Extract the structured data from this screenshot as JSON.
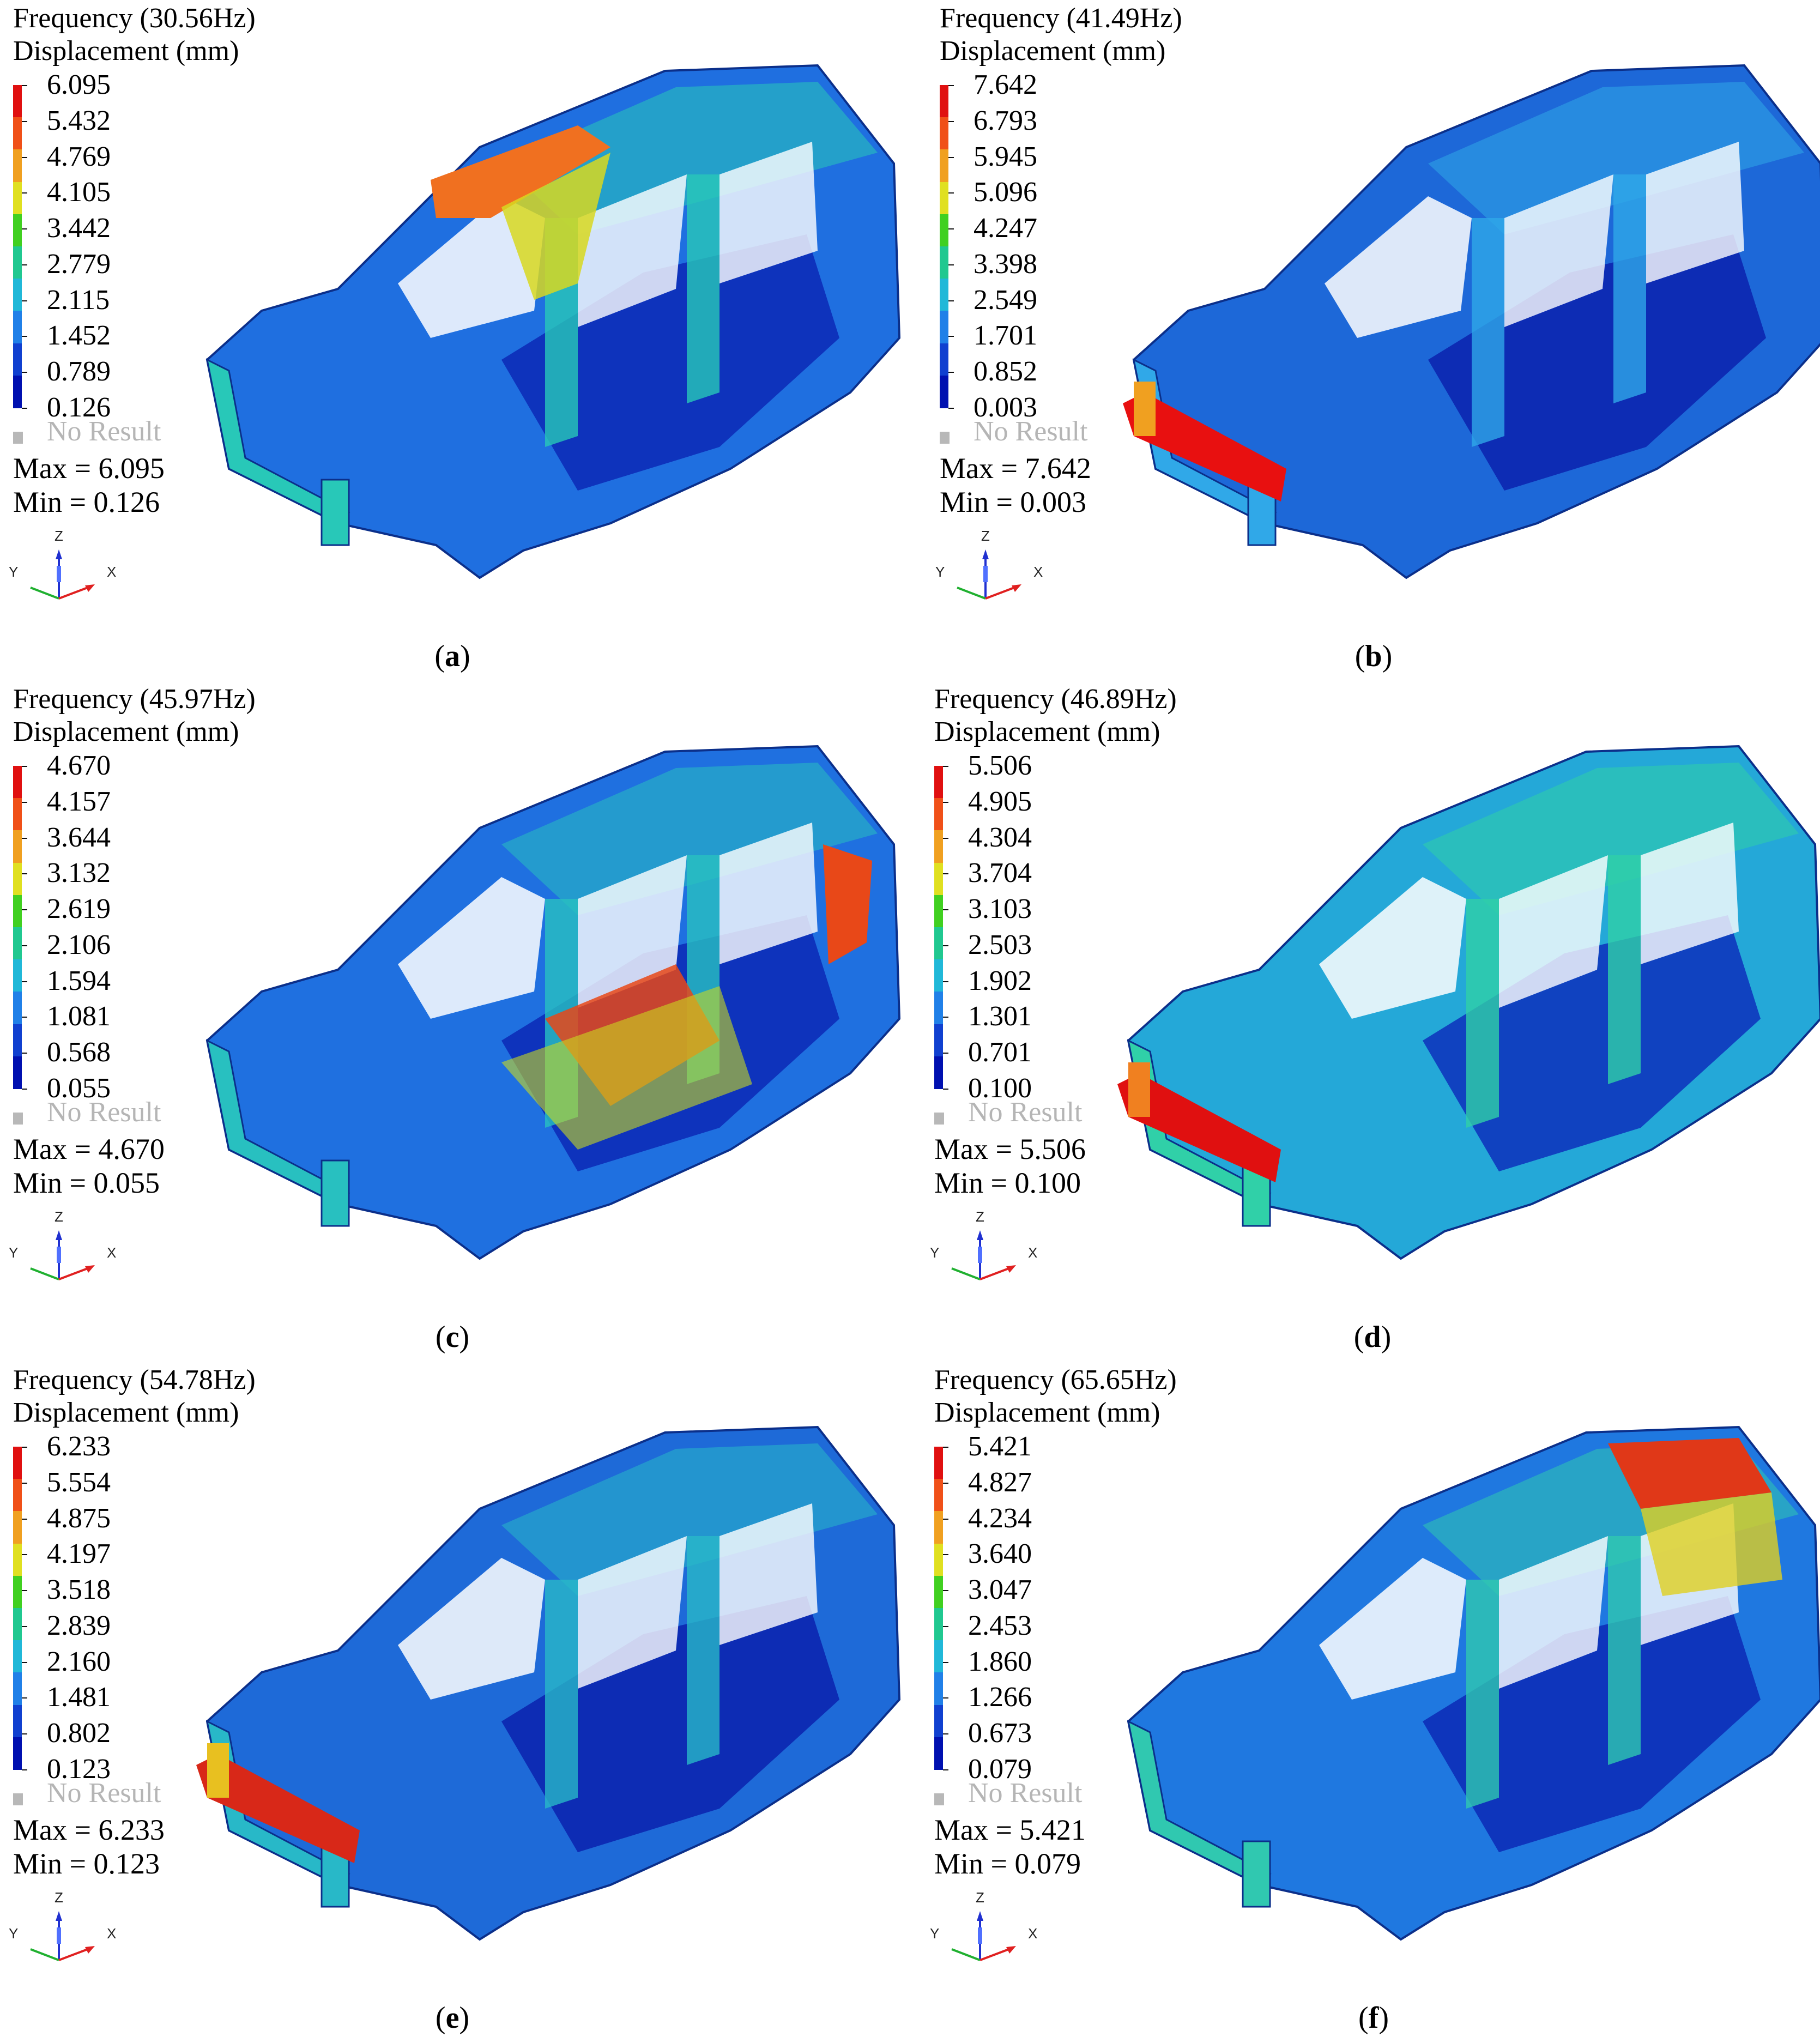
{
  "panels": [
    {
      "id": "a",
      "frequency_label": "Frequency (30.56Hz)",
      "quantity_label": "Displacement (mm)",
      "legend_values": [
        "6.095",
        "5.432",
        "4.769",
        "4.105",
        "3.442",
        "2.779",
        "2.115",
        "1.452",
        "0.789",
        "0.126"
      ],
      "no_result_label": "No Result",
      "max_label": "Max = 6.095",
      "min_label": "Min = 0.126",
      "axis_labels": {
        "z": "Z",
        "y": "Y",
        "x": "X"
      },
      "caption_letter": "a",
      "hotspot": "roof-front",
      "colors": {
        "body": "#1f6fe0",
        "hot": "#f07020",
        "warm": "#d8d820",
        "cool": "#28c8b8",
        "deep": "#0a1fb0"
      }
    },
    {
      "id": "b",
      "frequency_label": "Frequency (41.49Hz)",
      "quantity_label": "Displacement (mm)",
      "legend_values": [
        "7.642",
        "6.793",
        "5.945",
        "5.096",
        "4.247",
        "3.398",
        "2.549",
        "1.701",
        "0.852",
        "0.003"
      ],
      "no_result_label": "No Result",
      "max_label": "Max = 7.642",
      "min_label": "Min = 0.003",
      "axis_labels": {
        "z": "Z",
        "y": "Y",
        "x": "X"
      },
      "caption_letter": "b",
      "hotspot": "front-bumper",
      "colors": {
        "body": "#1d68d8",
        "hot": "#e81010",
        "warm": "#f0a020",
        "cool": "#30a8e8",
        "deep": "#0818a8"
      }
    },
    {
      "id": "c",
      "frequency_label": "Frequency (45.97Hz)",
      "quantity_label": "Displacement (mm)",
      "legend_values": [
        "4.670",
        "4.157",
        "3.644",
        "3.132",
        "2.619",
        "2.106",
        "1.594",
        "1.081",
        "0.568",
        "0.055"
      ],
      "no_result_label": "No Result",
      "max_label": "Max = 4.670",
      "min_label": "Min = 0.055",
      "axis_labels": {
        "z": "Z",
        "y": "Y",
        "x": "X"
      },
      "caption_letter": "c",
      "hotspot": "floor-rear",
      "colors": {
        "body": "#1f70e0",
        "hot": "#e84818",
        "warm": "#c8d820",
        "cool": "#28c0c0",
        "deep": "#0a1fb0"
      }
    },
    {
      "id": "d",
      "frequency_label": "Frequency (46.89Hz)",
      "quantity_label": "Displacement (mm)",
      "legend_values": [
        "5.506",
        "4.905",
        "4.304",
        "3.704",
        "3.103",
        "2.503",
        "1.902",
        "1.301",
        "0.701",
        "0.100"
      ],
      "no_result_label": "No Result",
      "max_label": "Max = 5.506",
      "min_label": "Min = 0.100",
      "axis_labels": {
        "z": "Z",
        "y": "Y",
        "x": "X"
      },
      "caption_letter": "d",
      "hotspot": "front-bumper",
      "colors": {
        "body": "#24a8d8",
        "hot": "#e01010",
        "warm": "#f08020",
        "cool": "#30d0a8",
        "deep": "#0a20b8"
      }
    },
    {
      "id": "e",
      "frequency_label": "Frequency (54.78Hz)",
      "quantity_label": "Displacement (mm)",
      "legend_values": [
        "6.233",
        "5.554",
        "4.875",
        "4.197",
        "3.518",
        "2.839",
        "2.160",
        "1.481",
        "0.802",
        "0.123"
      ],
      "no_result_label": "No Result",
      "max_label": "Max = 6.233",
      "min_label": "Min = 0.123",
      "axis_labels": {
        "z": "Z",
        "y": "Y",
        "x": "X"
      },
      "caption_letter": "e",
      "hotspot": "front-bumper",
      "colors": {
        "body": "#1e6ad8",
        "hot": "#d82818",
        "warm": "#e8c020",
        "cool": "#28b8c8",
        "deep": "#0818a8"
      }
    },
    {
      "id": "f",
      "frequency_label": "Frequency (65.65Hz)",
      "quantity_label": "Displacement (mm)",
      "legend_values": [
        "5.421",
        "4.827",
        "4.234",
        "3.640",
        "3.047",
        "2.453",
        "1.860",
        "1.266",
        "0.673",
        "0.079"
      ],
      "no_result_label": "No Result",
      "max_label": "Max = 5.421",
      "min_label": "Min = 0.079",
      "axis_labels": {
        "z": "Z",
        "y": "Y",
        "x": "X"
      },
      "caption_letter": "f",
      "hotspot": "roof-rear",
      "colors": {
        "body": "#1f78e0",
        "hot": "#e03818",
        "warm": "#e0d020",
        "cool": "#30c8b0",
        "deep": "#0a1fb0"
      }
    }
  ],
  "legend_colors": [
    "#e01010",
    "#f05018",
    "#f0a020",
    "#e0e020",
    "#40d020",
    "#20c890",
    "#20b8d8",
    "#2080e8",
    "#1040d0",
    "#0010b0"
  ]
}
